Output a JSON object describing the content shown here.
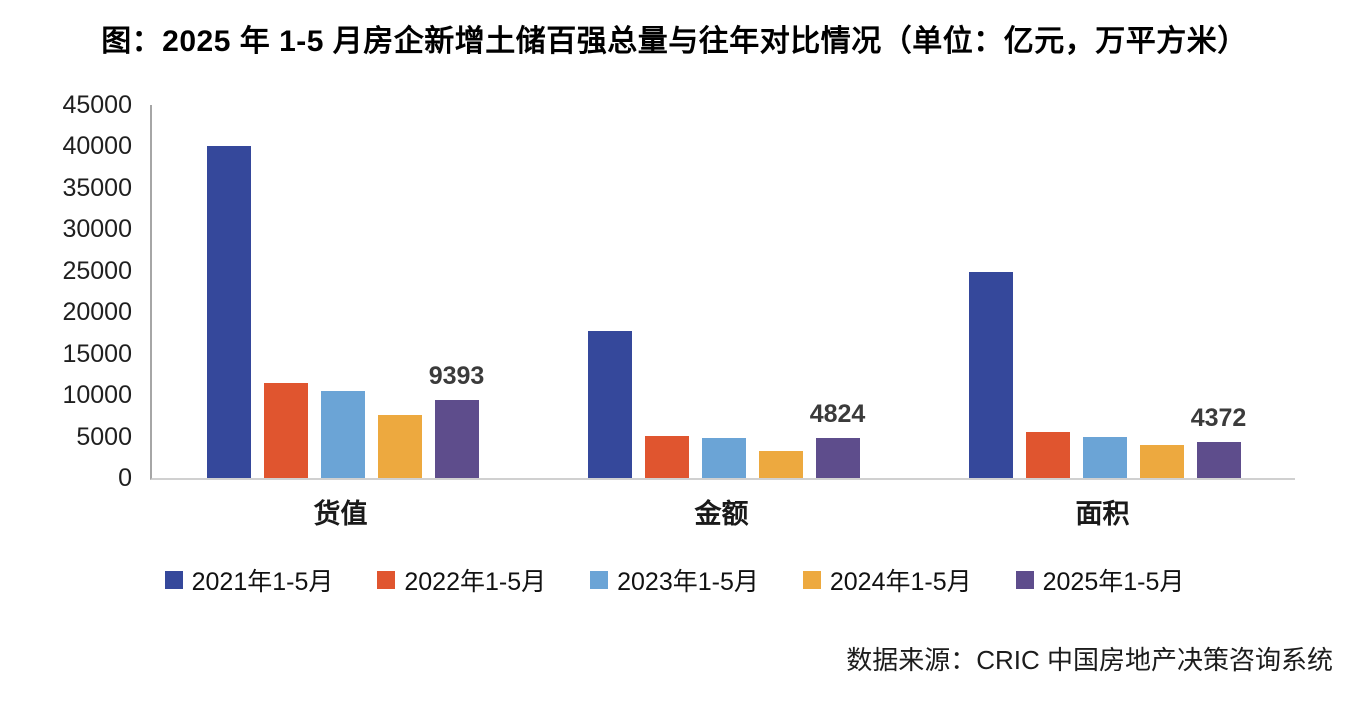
{
  "title": "图：2025 年 1-5 月房企新增土储百强总量与往年对比情况（单位：亿元，万平方米）",
  "source": "数据来源：CRIC 中国房地产决策咨询系统",
  "chart_data": {
    "type": "bar",
    "title": "图：2025 年 1-5 月房企新增土储百强总量与往年对比情况",
    "unit_note": "单位：亿元，万平方米",
    "categories": [
      "货值",
      "金额",
      "面积"
    ],
    "series": [
      {
        "name": "2021年1-5月",
        "color": "#35489B",
        "values": [
          40000,
          17700,
          24900
        ]
      },
      {
        "name": "2022年1-5月",
        "color": "#E0552F",
        "values": [
          11500,
          5100,
          5500
        ]
      },
      {
        "name": "2023年1-5月",
        "color": "#6BA4D6",
        "values": [
          10500,
          4800,
          4900
        ]
      },
      {
        "name": "2024年1-5月",
        "color": "#EDA93F",
        "values": [
          7600,
          3300,
          4000
        ]
      },
      {
        "name": "2025年1-5月",
        "color": "#5E4D8C",
        "values": [
          9393,
          4824,
          4372
        ],
        "show_data_labels": true
      }
    ],
    "data_labels_shown": [
      "9393",
      "4824",
      "4372"
    ],
    "ylim": [
      0,
      45000
    ],
    "yticks": [
      0,
      5000,
      10000,
      15000,
      20000,
      25000,
      30000,
      35000,
      40000,
      45000
    ],
    "grid": false,
    "legend_position": "bottom",
    "axis_color": "#A6A6A6",
    "baseline_color": "#D0D0D0"
  }
}
